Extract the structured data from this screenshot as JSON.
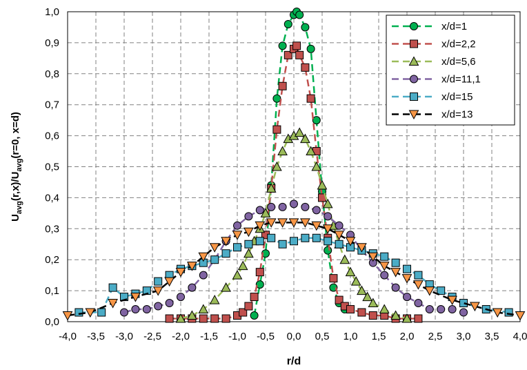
{
  "chart_data": {
    "type": "scatter",
    "xlabel": "r/d",
    "ylabel": {
      "main": "U",
      "sub1": "avg",
      "mid": "(r,x)/U",
      "sub2": "avg",
      "tail": "(r=0, x=d)"
    },
    "xlim": [
      -4.0,
      4.0
    ],
    "ylim": [
      0.0,
      1.0
    ],
    "x_ticks": [
      -4.0,
      -3.5,
      -3.0,
      -2.5,
      -2.0,
      -1.5,
      -1.0,
      -0.5,
      0.0,
      0.5,
      1.0,
      1.5,
      2.0,
      2.5,
      3.0,
      3.5,
      4.0
    ],
    "x_tick_labels": [
      "-4,0",
      "-3,5",
      "-3,0",
      "-2,5",
      "-2,0",
      "-1,5",
      "-1,0",
      "-0,5",
      "0,0",
      "0,5",
      "1,0",
      "1,5",
      "2,0",
      "2,5",
      "3,0",
      "3,5",
      "4,0"
    ],
    "y_ticks": [
      0.0,
      0.1,
      0.2,
      0.3,
      0.4,
      0.5,
      0.6,
      0.7,
      0.8,
      0.9,
      1.0
    ],
    "y_tick_labels": [
      "0,0",
      "0,1",
      "0,2",
      "0,3",
      "0,4",
      "0,5",
      "0,6",
      "0,7",
      "0,8",
      "0,9",
      "1,0"
    ],
    "grid": true,
    "legend_position": "top-right",
    "series": [
      {
        "name": "x/d=1",
        "color": "#00B050",
        "marker": "circle",
        "x": [
          -0.7,
          -0.6,
          -0.5,
          -0.4,
          -0.3,
          -0.2,
          -0.1,
          0.0,
          0.05,
          0.1,
          0.2,
          0.3,
          0.4,
          0.5,
          0.6,
          0.7,
          0.8,
          0.9
        ],
        "y": [
          0.02,
          0.12,
          0.22,
          0.44,
          0.72,
          0.89,
          0.96,
          0.99,
          1.0,
          0.99,
          0.95,
          0.88,
          0.65,
          0.42,
          0.23,
          0.11,
          0.06,
          0.04
        ]
      },
      {
        "name": "x/d=2,2",
        "color": "#C0504D",
        "marker": "square",
        "x": [
          -2.2,
          -2.0,
          -1.8,
          -1.6,
          -1.4,
          -1.2,
          -1.0,
          -0.9,
          -0.8,
          -0.7,
          -0.6,
          -0.5,
          -0.4,
          -0.3,
          -0.2,
          -0.1,
          0.0,
          0.05,
          0.1,
          0.2,
          0.3,
          0.4,
          0.5,
          0.6,
          0.7,
          0.8,
          0.9,
          1.0,
          1.2,
          1.4,
          1.6,
          1.8,
          2.0,
          2.2
        ],
        "y": [
          0.01,
          0.01,
          0.01,
          0.01,
          0.01,
          0.01,
          0.02,
          0.03,
          0.05,
          0.08,
          0.16,
          0.28,
          0.43,
          0.62,
          0.76,
          0.86,
          0.88,
          0.89,
          0.86,
          0.82,
          0.72,
          0.55,
          0.4,
          0.27,
          0.14,
          0.07,
          0.05,
          0.04,
          0.03,
          0.02,
          0.02,
          0.01,
          0.01,
          0.01
        ]
      },
      {
        "name": "x/d=5,6",
        "color": "#9BBB59",
        "marker": "triangle",
        "x": [
          -2.0,
          -1.8,
          -1.6,
          -1.4,
          -1.2,
          -1.0,
          -0.9,
          -0.8,
          -0.7,
          -0.6,
          -0.5,
          -0.4,
          -0.3,
          -0.2,
          -0.1,
          0.0,
          0.1,
          0.2,
          0.3,
          0.4,
          0.5,
          0.6,
          0.7,
          0.8,
          0.9,
          1.0,
          1.1,
          1.2,
          1.3,
          1.4,
          1.6,
          1.8,
          2.0
        ],
        "y": [
          0.01,
          0.02,
          0.04,
          0.07,
          0.11,
          0.15,
          0.18,
          0.22,
          0.26,
          0.3,
          0.35,
          0.43,
          0.5,
          0.55,
          0.59,
          0.6,
          0.61,
          0.59,
          0.55,
          0.5,
          0.44,
          0.38,
          0.31,
          0.25,
          0.2,
          0.16,
          0.13,
          0.1,
          0.08,
          0.06,
          0.04,
          0.02,
          0.01
        ]
      },
      {
        "name": "x/d=11,1",
        "color": "#8064A2",
        "marker": "circle",
        "x": [
          -3.0,
          -2.8,
          -2.6,
          -2.4,
          -2.2,
          -2.0,
          -1.8,
          -1.6,
          -1.4,
          -1.2,
          -1.0,
          -0.8,
          -0.6,
          -0.4,
          -0.2,
          0.0,
          0.2,
          0.4,
          0.6,
          0.8,
          1.0,
          1.2,
          1.4,
          1.6,
          1.8,
          2.0,
          2.2,
          2.4,
          2.6,
          2.8,
          3.0
        ],
        "y": [
          0.03,
          0.04,
          0.04,
          0.05,
          0.06,
          0.08,
          0.11,
          0.15,
          0.2,
          0.26,
          0.31,
          0.34,
          0.36,
          0.37,
          0.37,
          0.38,
          0.37,
          0.36,
          0.34,
          0.31,
          0.28,
          0.23,
          0.19,
          0.15,
          0.11,
          0.08,
          0.06,
          0.04,
          0.04,
          0.04,
          0.03
        ]
      },
      {
        "name": "x/d=15",
        "color": "#4BACC6",
        "marker": "square",
        "x": [
          -3.8,
          -3.4,
          -3.2,
          -3.0,
          -2.8,
          -2.6,
          -2.4,
          -2.2,
          -2.0,
          -1.8,
          -1.6,
          -1.4,
          -1.2,
          -1.0,
          -0.8,
          -0.6,
          -0.4,
          -0.2,
          0.0,
          0.2,
          0.4,
          0.6,
          0.8,
          1.0,
          1.2,
          1.4,
          1.6,
          1.8,
          2.0,
          2.2,
          2.4,
          2.6,
          2.8,
          3.0,
          3.4,
          3.8
        ],
        "y": [
          0.03,
          0.03,
          0.11,
          0.08,
          0.09,
          0.1,
          0.13,
          0.15,
          0.17,
          0.18,
          0.19,
          0.2,
          0.22,
          0.24,
          0.25,
          0.26,
          0.27,
          0.25,
          0.26,
          0.27,
          0.27,
          0.26,
          0.25,
          0.24,
          0.23,
          0.22,
          0.21,
          0.19,
          0.17,
          0.15,
          0.12,
          0.1,
          0.08,
          0.06,
          0.04,
          0.03
        ]
      },
      {
        "name": "x/d=13",
        "color": "#000000",
        "marker": "triangle-down",
        "marker_fill": "#F79646",
        "x": [
          -4.0,
          -3.6,
          -3.2,
          -2.8,
          -2.4,
          -2.2,
          -2.0,
          -1.8,
          -1.6,
          -1.4,
          -1.2,
          -1.0,
          -0.8,
          -0.6,
          -0.4,
          -0.2,
          0.0,
          0.2,
          0.4,
          0.6,
          0.8,
          1.0,
          1.2,
          1.4,
          1.6,
          1.8,
          2.0,
          2.2,
          2.4,
          2.8,
          3.2,
          3.6,
          4.0
        ],
        "y": [
          0.02,
          0.03,
          0.06,
          0.08,
          0.1,
          0.13,
          0.16,
          0.18,
          0.21,
          0.24,
          0.26,
          0.28,
          0.29,
          0.31,
          0.32,
          0.32,
          0.32,
          0.32,
          0.31,
          0.3,
          0.28,
          0.26,
          0.24,
          0.21,
          0.18,
          0.16,
          0.14,
          0.12,
          0.1,
          0.07,
          0.05,
          0.03,
          0.02
        ]
      }
    ]
  }
}
